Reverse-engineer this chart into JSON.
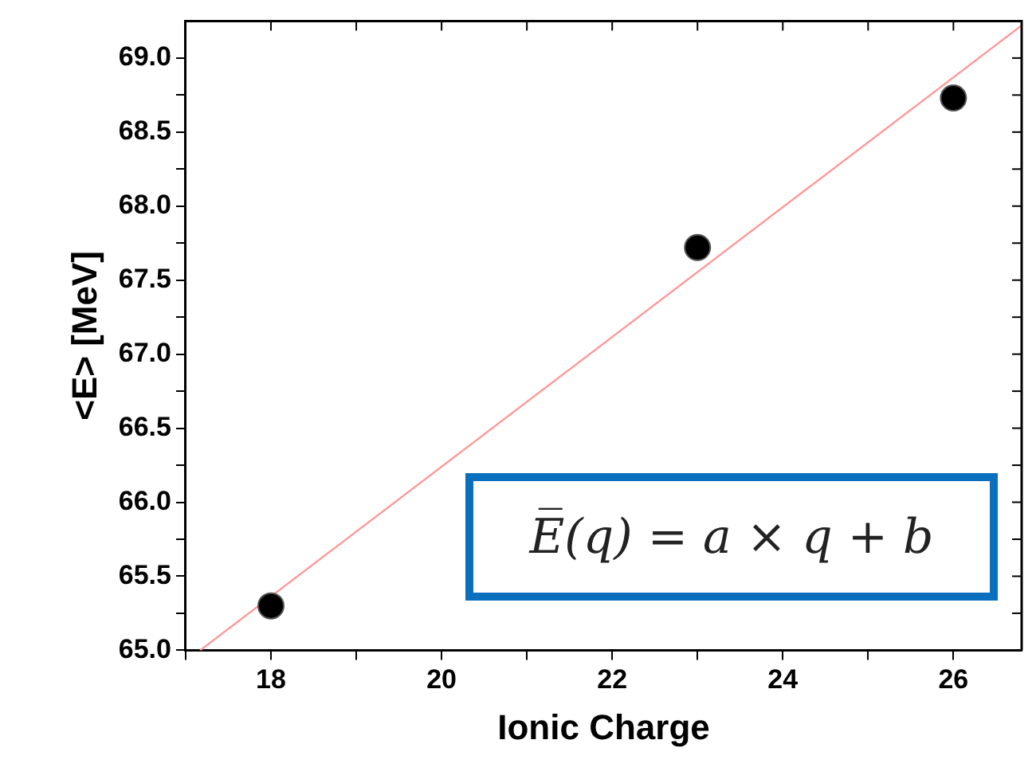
{
  "chart_data": {
    "type": "scatter",
    "xlabel": "Ionic Charge",
    "ylabel": "<E> [MeV]",
    "series": [
      {
        "color": "#000000",
        "x": [
          18,
          23,
          26
        ],
        "values": [
          65.3,
          67.72,
          68.73
        ],
        "marker": "circle"
      },
      {
        "type": "line",
        "color": "#ff9999",
        "x": [
          17.17,
          26.8
        ],
        "values": [
          65.0,
          69.22
        ],
        "marker": "none"
      }
    ],
    "xlim": [
      17,
      26.8
    ],
    "xticks": [
      {
        "value": 17,
        "label": null
      },
      18,
      {
        "value": 19,
        "label": null
      },
      20,
      {
        "value": 21,
        "label": null
      },
      22,
      {
        "value": 23,
        "label": null
      },
      24,
      {
        "value": 25,
        "label": null
      },
      26
    ],
    "ylim": [
      65.0,
      69.25
    ],
    "yticks": [
      {
        "value": 65.0,
        "label": "65.0"
      },
      {
        "value": 65.25,
        "label": null
      },
      {
        "value": 65.5,
        "label": "65.5"
      },
      {
        "value": 65.75,
        "label": null
      },
      {
        "value": 66.0,
        "label": "66.0"
      },
      {
        "value": 66.25,
        "label": null
      },
      {
        "value": 66.5,
        "label": "66.5"
      },
      {
        "value": 66.75,
        "label": null
      },
      {
        "value": 67.0,
        "label": "67.0"
      },
      {
        "value": 67.25,
        "label": null
      },
      {
        "value": 67.5,
        "label": "67.5"
      },
      {
        "value": 67.75,
        "label": null
      },
      {
        "value": 68.0,
        "label": "68.0"
      },
      {
        "value": 68.25,
        "label": null
      },
      {
        "value": 68.5,
        "label": "68.5"
      },
      {
        "value": 68.75,
        "label": null
      },
      {
        "value": 69.0,
        "label": "69.0"
      }
    ],
    "annotations": [
      "E̅(q) = a × q + b"
    ],
    "grid": false,
    "legend": false,
    "line_style": "solid"
  }
}
